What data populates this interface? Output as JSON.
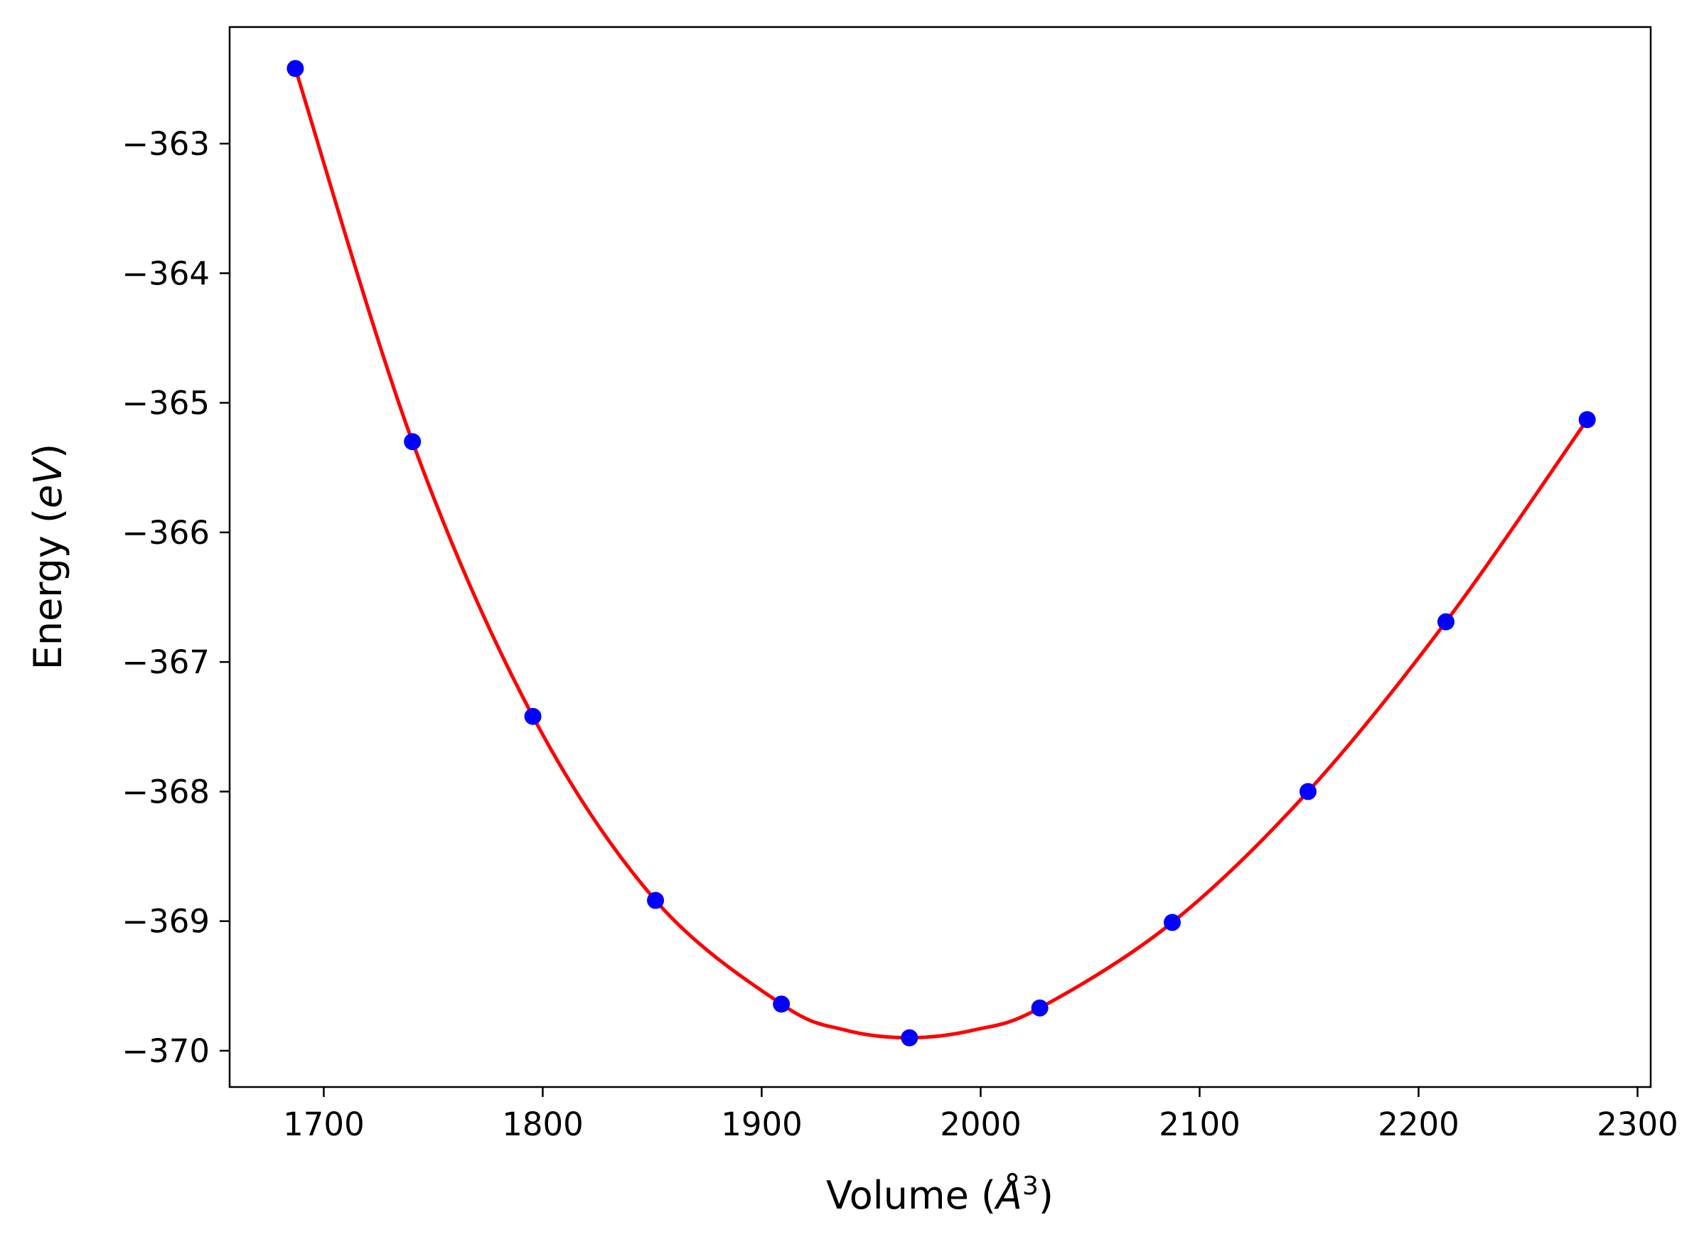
{
  "chart_data": {
    "type": "scatter",
    "title": "",
    "xlabel": "Volume (",
    "xlabel_symbol": "Å",
    "xlabel_exponent": "3",
    "xlabel_close": ")",
    "ylabel": "Energy (",
    "ylabel_unit": "eV",
    "ylabel_close": ")",
    "xlim": [
      1657,
      2306
    ],
    "ylim": [
      -370.28,
      -362.1
    ],
    "xticks": [
      1700,
      1800,
      1900,
      2000,
      2100,
      2200,
      2300
    ],
    "xtick_labels": [
      "1700",
      "1800",
      "1900",
      "2000",
      "2100",
      "2200",
      "2300"
    ],
    "yticks": [
      -363,
      -364,
      -365,
      -366,
      -367,
      -368,
      -369,
      -370
    ],
    "ytick_labels": [
      "−363",
      "−364",
      "−365",
      "−366",
      "−367",
      "−368",
      "−369",
      "−370"
    ],
    "grid": false,
    "series": [
      {
        "kind": "points",
        "color": "#0000ff",
        "x": [
          1687,
          1740.5,
          1795.5,
          1851.5,
          1909,
          1967.5,
          2027,
          2087.5,
          2149.5,
          2212.5,
          2277
        ],
        "y": [
          -362.42,
          -365.3,
          -367.42,
          -368.84,
          -369.64,
          -369.9,
          -369.67,
          -369.01,
          -368.0,
          -366.69,
          -365.13
        ]
      },
      {
        "kind": "fit-curve",
        "color": "#ff0000",
        "x": [
          1687,
          1740.5,
          1795.5,
          1851.5,
          1909,
          1938,
          1967.5,
          1997,
          2027,
          2087.5,
          2149.5,
          2212.5,
          2277
        ],
        "y": [
          -362.42,
          -365.3,
          -367.42,
          -368.84,
          -369.64,
          -369.84,
          -369.9,
          -369.84,
          -369.67,
          -369.01,
          -368.0,
          -366.69,
          -365.13
        ]
      }
    ]
  }
}
